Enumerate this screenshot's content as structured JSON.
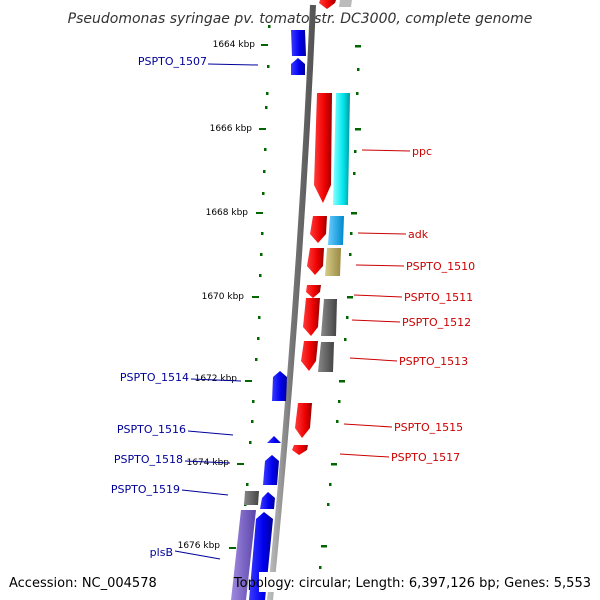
{
  "title": "Pseudomonas syringae pv. tomato str. DC3000, complete genome",
  "footer": {
    "accession": "Accession: NC_004578",
    "summary": "Topology: circular; Length: 6,397,126 bp; Genes: 5,553"
  },
  "ticks": [
    "1664 kbp",
    "1666 kbp",
    "1668 kbp",
    "1670 kbp",
    "1672 kbp",
    "1674 kbp",
    "1676 kbp"
  ],
  "genes_left": [
    "PSPTO_1507",
    "PSPTO_1514",
    "PSPTO_1516",
    "PSPTO_1518",
    "PSPTO_1519",
    "plsB"
  ],
  "genes_right": [
    "ppc",
    "adk",
    "PSPTO_1510",
    "PSPTO_1511",
    "PSPTO_1512",
    "PSPTO_1513",
    "PSPTO_1515",
    "PSPTO_1517"
  ],
  "colors": {
    "forward_strand": "#ff0000",
    "reverse_strand": "#0000ff",
    "left_label": "#000099",
    "right_label": "#cc0000",
    "backbone": "#888888",
    "tick_dots": "#006600"
  }
}
